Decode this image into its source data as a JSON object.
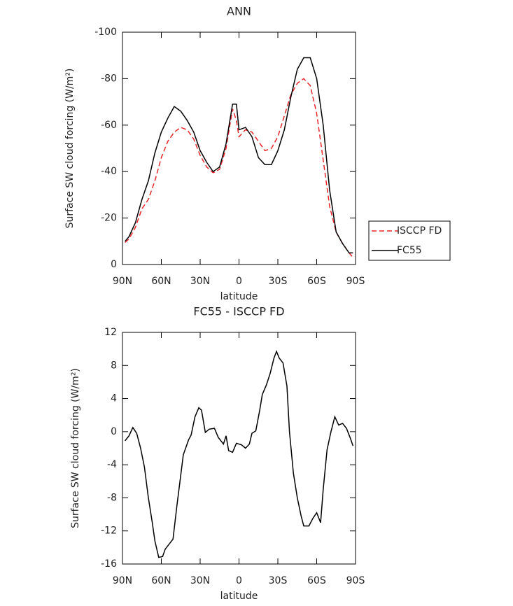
{
  "chart_data": [
    {
      "type": "line",
      "title": "ANN",
      "xlabel": "latitude",
      "ylabel": "Surface SW cloud forcing (W/m²)",
      "x": [
        88,
        85,
        80,
        75,
        70,
        65,
        60,
        55,
        50,
        45,
        40,
        35,
        30,
        25,
        20,
        15,
        10,
        5,
        2,
        0,
        -5,
        -10,
        -15,
        -20,
        -25,
        -30,
        -35,
        -40,
        -45,
        -50,
        -55,
        -60,
        -65,
        -70,
        -75,
        -80,
        -85,
        -88
      ],
      "series": [
        {
          "name": "ISCCP FD",
          "color": "#e8262a",
          "linestyle": "dashed",
          "values": [
            -9.5,
            -11,
            -16,
            -24,
            -28,
            -36,
            -46,
            -53,
            -57,
            -59,
            -58,
            -54,
            -47,
            -42,
            -39.5,
            -41,
            -50,
            -67,
            -62,
            -55,
            -58,
            -57,
            -53,
            -49,
            -50,
            -55,
            -64,
            -73,
            -78,
            -80,
            -77,
            -65,
            -45,
            -25,
            -14,
            -9,
            -5,
            -3
          ]
        },
        {
          "name": "FC55",
          "color": "#000000",
          "linestyle": "solid",
          "values": [
            -10,
            -12,
            -18,
            -28,
            -36,
            -48,
            -57,
            -63,
            -68,
            -66,
            -62,
            -57,
            -49,
            -44,
            -40,
            -42,
            -52,
            -69,
            -69,
            -58,
            -59,
            -55,
            -46,
            -43,
            -43,
            -49,
            -58,
            -72,
            -84,
            -89,
            -89,
            -80,
            -60,
            -32,
            -14,
            -9,
            -5,
            -5
          ]
        }
      ],
      "xlim": [
        90,
        -90
      ],
      "xticks": [
        {
          "value": 90,
          "label": "90N"
        },
        {
          "value": 60,
          "label": "60N"
        },
        {
          "value": 30,
          "label": "30N"
        },
        0,
        {
          "value": -30,
          "label": "30S"
        },
        {
          "value": -60,
          "label": "60S"
        },
        {
          "value": -90,
          "label": "90S"
        }
      ],
      "ylim": [
        0,
        -100
      ],
      "yticks": [
        0,
        -20,
        -40,
        -60,
        -80,
        -100
      ],
      "grid": false,
      "legend": "right"
    },
    {
      "type": "line",
      "title": "FC55 - ISCCP FD",
      "xlabel": "latitude",
      "ylabel": "Surface SW cloud forcing (W/m²)",
      "x": [
        88,
        85,
        82,
        79,
        76,
        73,
        70,
        67,
        65,
        62,
        59,
        57,
        51,
        48,
        43,
        39,
        37,
        34,
        31,
        29,
        26,
        23,
        19,
        16,
        12,
        10,
        8,
        5,
        2,
        -2,
        -5,
        -8,
        -10,
        -13,
        -16,
        -18,
        -21,
        -24,
        -27,
        -29,
        -31,
        -34,
        -37,
        -39,
        -42,
        -45,
        -48,
        -50,
        -54,
        -57,
        -60,
        -63,
        -65,
        -68,
        -71,
        -74,
        -77,
        -80,
        -83,
        -86,
        -88
      ],
      "values": [
        -1.1,
        -0.5,
        0.5,
        -0.2,
        -2,
        -4.3,
        -8,
        -11,
        -13.2,
        -15.2,
        -15.1,
        -14.2,
        -13,
        -9,
        -2.8,
        -1,
        -0.4,
        1.8,
        2.9,
        2.6,
        -0.1,
        0.3,
        0.4,
        -0.7,
        -1.5,
        -0.5,
        -2.3,
        -2.5,
        -1.4,
        -1.6,
        -2,
        -1.5,
        -0.2,
        0.1,
        2.6,
        4.5,
        5.6,
        7,
        8.9,
        9.7,
        8.9,
        8.3,
        5.5,
        0,
        -5,
        -8,
        -10.2,
        -11.4,
        -11.4,
        -10.5,
        -9.8,
        -11,
        -7,
        -2.2,
        0,
        1.8,
        0.8,
        1,
        0.4,
        -0.8,
        -1.7
      ],
      "color": "#000000",
      "xlim": [
        90,
        -90
      ],
      "xticks": [
        {
          "value": 90,
          "label": "90N"
        },
        {
          "value": 60,
          "label": "60N"
        },
        {
          "value": 30,
          "label": "30N"
        },
        0,
        {
          "value": -30,
          "label": "30S"
        },
        {
          "value": -60,
          "label": "60S"
        },
        {
          "value": -90,
          "label": "90S"
        }
      ],
      "ylim": [
        -16,
        12
      ],
      "yticks": [
        12,
        8,
        4,
        0,
        -4,
        -8,
        -12,
        -16
      ],
      "grid": false
    }
  ]
}
